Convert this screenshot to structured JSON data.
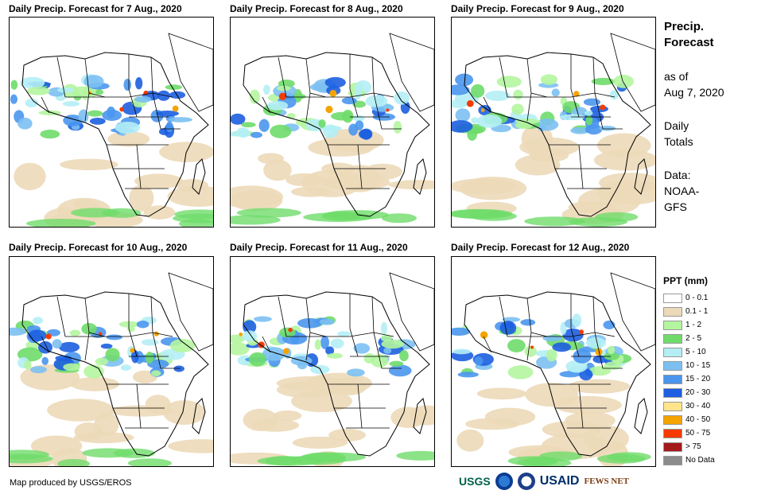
{
  "panels": [
    {
      "title": "Daily Precip. Forecast for 7 Aug., 2020",
      "date": "7 Aug"
    },
    {
      "title": "Daily Precip. Forecast for 8 Aug., 2020",
      "date": "8 Aug"
    },
    {
      "title": "Daily Precip. Forecast for 9 Aug., 2020",
      "date": "9 Aug"
    },
    {
      "title": "Daily Precip. Forecast for 10 Aug., 2020",
      "date": "10 Aug"
    },
    {
      "title": "Daily Precip. Forecast for 11 Aug., 2020",
      "date": "11 Aug"
    },
    {
      "title": "Daily Precip. Forecast for 12 Aug., 2020",
      "date": "12 Aug"
    }
  ],
  "side": {
    "title_line1": "Precip.",
    "title_line2": "Forecast",
    "asof_line1": "as of",
    "asof_line2": "Aug 7, 2020",
    "totals_line1": "Daily",
    "totals_line2": "Totals",
    "data_line1": "Data:",
    "data_line2": "NOAA-",
    "data_line3": "GFS"
  },
  "legend": {
    "title": "PPT (mm)",
    "items": [
      {
        "label": "0 - 0.1",
        "color": "#ffffff"
      },
      {
        "label": "0.1 - 1",
        "color": "#ecd9b8"
      },
      {
        "label": "1 - 2",
        "color": "#b4f5a0"
      },
      {
        "label": "2 - 5",
        "color": "#6fdc6a"
      },
      {
        "label": "5 - 10",
        "color": "#b4eef5"
      },
      {
        "label": "10 - 15",
        "color": "#7cc0f2"
      },
      {
        "label": "15 - 20",
        "color": "#4a96ee"
      },
      {
        "label": "20 - 30",
        "color": "#1d5fe0"
      },
      {
        "label": "30 - 40",
        "color": "#ffe58a"
      },
      {
        "label": "40 - 50",
        "color": "#f5a300"
      },
      {
        "label": "50 - 75",
        "color": "#f53b00"
      },
      {
        "label": "> 75",
        "color": "#a31a1a"
      },
      {
        "label": "No Data",
        "color": "#8c8c8c"
      }
    ]
  },
  "footer": {
    "credit": "Map produced by USGS/EROS"
  },
  "logos": {
    "usgs": "USGS",
    "usaid": "USAID",
    "fewsnet": "FEWS NET"
  }
}
